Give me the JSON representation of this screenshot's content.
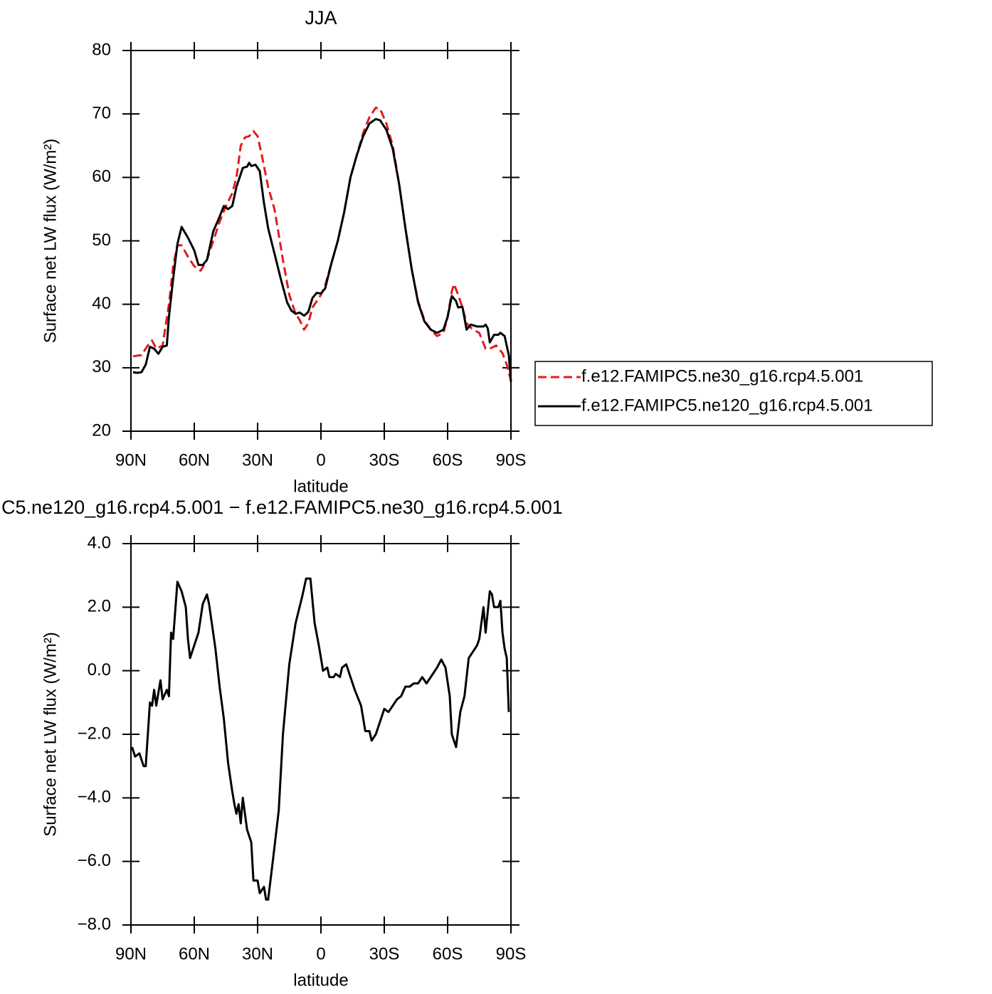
{
  "chart_data": [
    {
      "type": "line",
      "title": "JJA",
      "x_label": "latitude",
      "y_label": "Surface net LW flux (W/m²)",
      "xlim": [
        90,
        -90
      ],
      "xticks": [
        {
          "value": 90,
          "label": "90N"
        },
        {
          "value": 60,
          "label": "60N"
        },
        {
          "value": 30,
          "label": "30N"
        },
        0,
        {
          "value": -30,
          "label": "30S"
        },
        {
          "value": -60,
          "label": "60S"
        },
        {
          "value": -90,
          "label": "90S"
        }
      ],
      "ylim": [
        20,
        80
      ],
      "yticks": [
        20,
        30,
        40,
        50,
        60,
        70,
        80
      ],
      "legend": "outside-right",
      "series": [
        {
          "name": "f.e12.FAMIPC5.ne30_g16.rcp4.5.001",
          "color": "#e41a1c",
          "dashed": true,
          "x": [
            89,
            85,
            82,
            80,
            78,
            75,
            72,
            70,
            68,
            66,
            63,
            60,
            57,
            54,
            51,
            48,
            45,
            42,
            40,
            38,
            36,
            34,
            32,
            30,
            28,
            25,
            22,
            20,
            18,
            15,
            12,
            10,
            8,
            6,
            4,
            2,
            0,
            -2,
            -5,
            -8,
            -11,
            -14,
            -17,
            -20,
            -23,
            -26,
            -28,
            -31,
            -34,
            -37,
            -40,
            -43,
            -46,
            -49,
            -52,
            -55,
            -58,
            -60,
            -62,
            -63,
            -65,
            -67,
            -69,
            -72,
            -75,
            -78,
            -80,
            -83,
            -86,
            -88,
            -90
          ],
          "values": [
            31.8,
            32.0,
            33.5,
            34.3,
            33.0,
            33.5,
            40,
            46,
            49.3,
            49.3,
            47.5,
            46,
            45.3,
            47,
            50,
            53,
            55.5,
            57.5,
            60,
            65,
            66.3,
            66.5,
            67.3,
            66.5,
            63.5,
            58.5,
            55,
            51,
            47,
            41.5,
            38.5,
            37.5,
            36,
            37,
            39.5,
            40.5,
            41.5,
            43,
            46.5,
            50,
            54.5,
            60,
            63.5,
            67,
            69.5,
            71.0,
            70.8,
            68.5,
            65,
            59,
            52,
            45.5,
            40.5,
            37.5,
            36,
            35.0,
            35.5,
            38,
            42,
            43.2,
            41.5,
            39.5,
            37,
            36,
            35.5,
            33,
            33,
            33.5,
            32.3,
            30.5,
            28
          ]
        },
        {
          "name": "f.e12.FAMIPC5.ne120_g16.rcp4.5.001",
          "color": "#000000",
          "dashed": false,
          "x": [
            89,
            87,
            85,
            83,
            81,
            79,
            77,
            75,
            73,
            72,
            70,
            68,
            66,
            63,
            60,
            58,
            56,
            54,
            51,
            48,
            46,
            44,
            42,
            40,
            37,
            35,
            34,
            33,
            31,
            29,
            27,
            25,
            22,
            19,
            16,
            14,
            12,
            10,
            8,
            6,
            4,
            2,
            0,
            -2,
            -5,
            -8,
            -11,
            -14,
            -17,
            -20,
            -23,
            -26,
            -28,
            -31,
            -34,
            -37,
            -40,
            -43,
            -46,
            -49,
            -52,
            -55,
            -58,
            -60,
            -62,
            -64,
            -65,
            -67,
            -69,
            -71,
            -74,
            -77,
            -78,
            -79,
            -80,
            -82,
            -84,
            -85,
            -87,
            -89,
            -90
          ],
          "values": [
            29.3,
            29.2,
            29.3,
            30.5,
            33.3,
            33,
            32.2,
            33.3,
            33.5,
            38,
            44,
            49.5,
            52.2,
            50.5,
            48.5,
            46.2,
            46.2,
            47,
            51.5,
            53.8,
            55.5,
            55,
            55.5,
            58.5,
            61.5,
            61.7,
            62.3,
            61.8,
            62,
            61,
            56,
            52,
            48,
            44,
            40.3,
            39,
            38.5,
            38.7,
            38.2,
            38.8,
            41,
            41.8,
            41.7,
            42.5,
            46.5,
            50,
            54.5,
            60,
            63.5,
            66.5,
            68.5,
            69.2,
            69,
            67.5,
            64.5,
            59,
            52,
            45.5,
            40.3,
            37.3,
            36,
            35.5,
            36,
            38,
            41.3,
            40.5,
            39.5,
            39.6,
            36,
            36.8,
            36.5,
            36.5,
            36.8,
            36.2,
            34,
            35.2,
            35.2,
            35.5,
            35,
            32,
            27.8
          ]
        }
      ]
    },
    {
      "type": "line",
      "title": "C5.ne120_g16.rcp4.5.001 − f.e12.FAMIPC5.ne30_g16.rcp4.5.001",
      "x_label": "latitude",
      "y_label": "Surface net LW flux (W/m²)",
      "xlim": [
        90,
        -90
      ],
      "xticks": [
        {
          "value": 90,
          "label": "90N"
        },
        {
          "value": 60,
          "label": "60N"
        },
        {
          "value": 30,
          "label": "30N"
        },
        0,
        {
          "value": -30,
          "label": "30S"
        },
        {
          "value": -60,
          "label": "60S"
        },
        {
          "value": -90,
          "label": "90S"
        }
      ],
      "ylim": [
        -8,
        4
      ],
      "yticks": [
        {
          "value": -8,
          "label": "−8.0"
        },
        {
          "value": -6,
          "label": "−6.0"
        },
        {
          "value": -4,
          "label": "−4.0"
        },
        {
          "value": -2,
          "label": "−2.0"
        },
        {
          "value": 0,
          "label": "0.0"
        },
        {
          "value": 2,
          "label": "2.0"
        },
        {
          "value": 4,
          "label": "4.0"
        }
      ],
      "series": [
        {
          "color": "#000000",
          "dashed": false,
          "x": [
            89.5,
            88,
            86,
            84,
            83,
            81,
            80,
            79,
            78,
            76,
            75,
            73,
            72,
            71,
            70,
            68,
            66,
            64,
            63,
            62,
            60,
            58,
            56,
            54,
            53,
            50,
            48,
            46,
            44,
            42,
            41,
            40,
            39,
            38,
            37,
            35,
            33,
            32,
            30,
            29,
            27,
            26,
            25,
            23,
            20,
            18,
            15,
            12,
            9,
            7,
            5,
            3,
            1,
            -1,
            -3,
            -4,
            -6,
            -7,
            -9,
            -10,
            -12,
            -14,
            -16,
            -19,
            -21,
            -23,
            -24,
            -26,
            -28,
            -30,
            -32,
            -34,
            -36,
            -38,
            -40,
            -42,
            -44,
            -46,
            -48,
            -50,
            -52,
            -55,
            -57,
            -59,
            -61,
            -62,
            -64,
            -66,
            -68,
            -70,
            -72,
            -74,
            -75,
            -77,
            -78,
            -80,
            -81,
            -82,
            -84,
            -85,
            -86,
            -87,
            -88,
            -89
          ],
          "values": [
            -2.4,
            -2.7,
            -2.6,
            -3.0,
            -3.0,
            -1.0,
            -1.1,
            -0.6,
            -1.1,
            -0.3,
            -0.9,
            -0.6,
            -0.8,
            1.2,
            1.0,
            2.8,
            2.5,
            2.0,
            1.0,
            0.4,
            0.8,
            1.2,
            2.1,
            2.4,
            2.1,
            0.7,
            -0.5,
            -1.5,
            -2.9,
            -3.8,
            -4.2,
            -4.5,
            -4.2,
            -4.8,
            -4.0,
            -5.0,
            -5.4,
            -6.6,
            -6.6,
            -7.0,
            -6.8,
            -7.2,
            -7.2,
            -6.1,
            -4.4,
            -2.0,
            0.2,
            1.5,
            2.3,
            2.9,
            2.9,
            1.5,
            0.8,
            0.0,
            0.1,
            -0.2,
            -0.2,
            -0.1,
            -0.2,
            0.1,
            0.2,
            -0.2,
            -0.6,
            -1.1,
            -1.9,
            -1.9,
            -2.2,
            -2.0,
            -1.6,
            -1.2,
            -1.3,
            -1.1,
            -0.9,
            -0.8,
            -0.5,
            -0.5,
            -0.4,
            -0.4,
            -0.2,
            -0.4,
            -0.2,
            0.1,
            0.35,
            0.1,
            -0.8,
            -2.0,
            -2.4,
            -1.3,
            -0.8,
            0.4,
            0.6,
            0.8,
            1.0,
            2.0,
            1.2,
            2.5,
            2.4,
            2.0,
            2.0,
            2.2,
            1.2,
            0.7,
            0.4,
            -1.3
          ]
        }
      ]
    }
  ]
}
